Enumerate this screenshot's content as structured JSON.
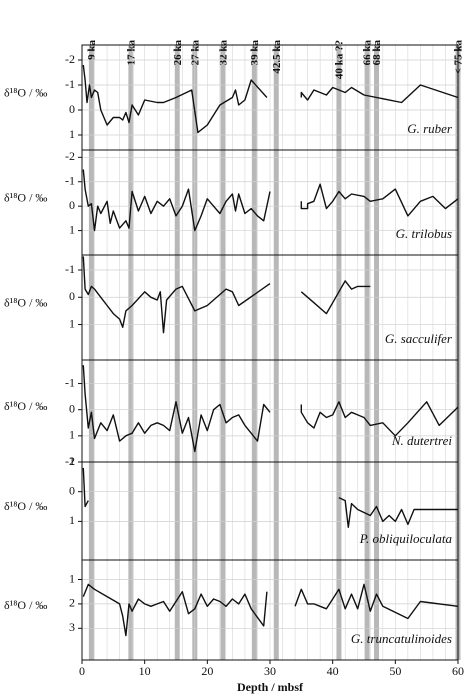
{
  "chart_data": [
    {
      "type": "line",
      "annotation": "G. ruber",
      "y_label": "δ¹⁸O / ‰",
      "inverted": true,
      "ylim": [
        -2.6,
        1.6
      ],
      "yticks": [
        -2,
        -1,
        0,
        1
      ],
      "xlim": [
        0,
        60
      ],
      "grid_step": 2,
      "color": "#111",
      "events": [
        {
          "label": "9 ka",
          "x": 1.5
        },
        {
          "label": "17 ka",
          "x": 7.8
        },
        {
          "label": "26 ka",
          "x": 15.2
        },
        {
          "label": "27 ka",
          "x": 18
        },
        {
          "label": "32 ka",
          "x": 22.5
        },
        {
          "label": "39 ka",
          "x": 27.5
        },
        {
          "label": "42.5 ka",
          "x": 31
        },
        {
          "label": "40 ka ??",
          "x": 41
        },
        {
          "label": "66 ka",
          "x": 45.5
        },
        {
          "label": "68 ka",
          "x": 47
        },
        {
          "label": "< 75 ka",
          "x": 60
        }
      ],
      "x": [
        0.2,
        0.5,
        0.8,
        1.2,
        1.5,
        2,
        2.5,
        3,
        4,
        5,
        6,
        6.5,
        7,
        7.5,
        8,
        9,
        10,
        12,
        13,
        15,
        17.5,
        18.5,
        20,
        22,
        24,
        24.5,
        25,
        26,
        27,
        29.5,
        null,
        35,
        35,
        36,
        37,
        39,
        40,
        42,
        43,
        45,
        51,
        54,
        60
      ],
      "values": [
        -1.8,
        -1.2,
        -0.3,
        -1,
        -0.5,
        -0.8,
        -0.7,
        0,
        0.6,
        0.3,
        0.3,
        0.4,
        0.1,
        0.5,
        -0.2,
        0.2,
        -0.4,
        -0.3,
        -0.3,
        -0.5,
        -0.8,
        0.9,
        0.6,
        -0.2,
        -0.5,
        -0.8,
        -0.2,
        -0.4,
        -1.2,
        -0.5,
        null,
        -0.5,
        -0.7,
        -0.4,
        -0.8,
        -0.6,
        -0.9,
        -0.7,
        -0.9,
        -0.6,
        -0.3,
        -1,
        -0.5
      ]
    },
    {
      "type": "line",
      "annotation": "G. trilobus",
      "y_label": "δ¹⁸O / ‰",
      "inverted": true,
      "ylim": [
        -2.3,
        2.0
      ],
      "yticks": [
        -2,
        -1,
        0,
        1
      ],
      "xlim": [
        0,
        60
      ],
      "grid_step": 2,
      "color": "#111",
      "x": [
        0.2,
        0.5,
        1,
        1.5,
        2,
        2.5,
        3,
        4,
        4.5,
        5,
        6,
        7,
        7.5,
        8,
        9,
        10,
        11,
        12,
        13,
        14,
        15,
        16,
        17,
        18,
        19,
        20,
        21,
        22,
        23,
        24,
        24.5,
        25,
        26,
        27,
        28,
        29,
        30,
        null,
        35,
        35,
        36,
        36,
        37,
        38,
        39,
        40,
        41,
        42,
        43,
        45,
        46,
        48,
        50,
        52,
        54,
        56,
        58,
        60
      ],
      "values": [
        -1.5,
        -0.7,
        0,
        -0.1,
        1,
        0,
        0.3,
        -0.2,
        0.7,
        0.2,
        0.9,
        0.6,
        0.9,
        -0.6,
        0.2,
        -0.4,
        0.3,
        -0.2,
        0,
        -0.3,
        0.4,
        0,
        -0.7,
        1,
        0.4,
        -0.3,
        0,
        0.3,
        -0.2,
        -0.5,
        0.2,
        -0.5,
        0.3,
        0.1,
        0.4,
        0.6,
        -0.6,
        null,
        -0.2,
        0.1,
        0.1,
        -0.1,
        -0.2,
        -0.9,
        0.1,
        -0.2,
        -0.6,
        -0.3,
        -0.5,
        -0.4,
        -0.2,
        -0.3,
        -0.7,
        0.4,
        -0.2,
        -0.4,
        0.1,
        -0.3
      ]
    },
    {
      "type": "line",
      "annotation": "G. sacculifer",
      "y_label": "δ¹⁸O / ‰",
      "inverted": true,
      "ylim": [
        -1.55,
        2.3
      ],
      "yticks": [
        -1,
        0,
        1
      ],
      "xlim": [
        0,
        60
      ],
      "grid_step": 2,
      "color": "#111",
      "x": [
        0.2,
        0.5,
        1,
        1.5,
        2,
        3,
        4,
        5,
        6,
        6.5,
        7,
        8,
        10,
        11,
        12,
        12.5,
        13,
        13.5,
        15,
        16,
        18,
        20,
        22,
        23,
        24,
        25,
        30,
        null,
        35,
        37,
        39,
        40,
        41,
        42,
        43,
        44,
        45,
        46
      ],
      "values": [
        -1.5,
        -0.3,
        -0.1,
        -0.4,
        -0.3,
        0,
        0.3,
        0.6,
        0.8,
        1.1,
        0.5,
        0.3,
        -0.2,
        0,
        0.1,
        -0.2,
        1.3,
        0.1,
        -0.3,
        -0.4,
        0.5,
        0.3,
        -0.1,
        -0.3,
        -0.2,
        0.3,
        -0.5,
        null,
        -0.2,
        0.2,
        0.6,
        0.2,
        -0.2,
        -0.6,
        -0.3,
        -0.4,
        -0.4,
        -0.4
      ]
    },
    {
      "type": "line",
      "annotation": "N. dutertrei",
      "y_label": "δ¹⁸O / ‰",
      "inverted": true,
      "ylim": [
        -1.9,
        2.0
      ],
      "yticks": [
        -1,
        0,
        1,
        2
      ],
      "xlim": [
        0,
        60
      ],
      "grid_step": 2,
      "color": "#111",
      "x": [
        0.2,
        0.5,
        1,
        1.5,
        2,
        3,
        4,
        5,
        6,
        7,
        8,
        9,
        10,
        11,
        12,
        13,
        14,
        15,
        16,
        17,
        18,
        19,
        20,
        21,
        22,
        23,
        24,
        25,
        26,
        27,
        28,
        29,
        30,
        null,
        35,
        35,
        36,
        37,
        38,
        39,
        40,
        41,
        42,
        43,
        44,
        45,
        46,
        48,
        50,
        52,
        55,
        57,
        60
      ],
      "values": [
        -1.7,
        -0.6,
        0.7,
        0.1,
        1.1,
        0.5,
        0.8,
        0.2,
        1.2,
        1,
        0.9,
        0.5,
        0.9,
        0.6,
        0.5,
        0.6,
        0.8,
        -0.3,
        0.9,
        0.3,
        1.6,
        0.2,
        0.8,
        0,
        -0.2,
        0.5,
        0.3,
        0.2,
        0.6,
        0.9,
        1.2,
        -0.2,
        0.1,
        null,
        -0.2,
        0.1,
        0.5,
        0.7,
        0.1,
        0.3,
        0.2,
        -0.3,
        0.3,
        0.1,
        0.2,
        0.3,
        0.6,
        0.5,
        1,
        0.5,
        -0.3,
        0.6,
        -0.1
      ]
    },
    {
      "type": "line",
      "annotation": "P. obliquiloculata",
      "y_label": "δ¹⁸O / ‰",
      "inverted": true,
      "ylim": [
        -1.0,
        2.3
      ],
      "yticks": [
        -1,
        0,
        1
      ],
      "xlim": [
        0,
        60
      ],
      "grid_step": 2,
      "color": "#111",
      "x": [
        0.2,
        0.5,
        1,
        null,
        41,
        42,
        42.5,
        43,
        44,
        45,
        46,
        47,
        48,
        49,
        50,
        51,
        52,
        53,
        60
      ],
      "values": [
        -0.8,
        0.5,
        0.3,
        null,
        0.2,
        0.3,
        1.2,
        0.4,
        0.6,
        0.7,
        0.8,
        0.5,
        1,
        0.8,
        1,
        0.6,
        1.1,
        0.6,
        0.6
      ]
    },
    {
      "type": "line",
      "annotation": "G. truncatulinoides",
      "y_label": "δ¹⁸O / ‰",
      "inverted": true,
      "ylim": [
        0.2,
        4.3
      ],
      "yticks": [
        1,
        2,
        3
      ],
      "xlim": [
        0,
        60
      ],
      "xticks": [
        0,
        10,
        20,
        30,
        40,
        50,
        60
      ],
      "x_label": "Depth / mbsf",
      "grid_step": 2,
      "color": "#111",
      "x": [
        0.2,
        1,
        2,
        4,
        6,
        6.5,
        7,
        7.5,
        8,
        9,
        10,
        11,
        12,
        13,
        14,
        15,
        16,
        17,
        18,
        19,
        20,
        21,
        22,
        23,
        24,
        25,
        26,
        27,
        29,
        29.5,
        null,
        34,
        35,
        36,
        37,
        38,
        39,
        40,
        41,
        42,
        43,
        44,
        45,
        46,
        47,
        48,
        52,
        54,
        60
      ],
      "values": [
        1.7,
        1.2,
        1.4,
        1.7,
        2,
        2.5,
        3.3,
        2,
        2.3,
        1.8,
        2,
        2.1,
        2,
        1.9,
        2.3,
        1.9,
        1.5,
        2.4,
        2.2,
        1.6,
        2.1,
        1.8,
        1.9,
        2.1,
        1.8,
        2,
        1.6,
        2.2,
        2.9,
        1.5,
        null,
        2.1,
        1.4,
        2,
        2,
        2.1,
        2.2,
        1.8,
        1.4,
        2.2,
        1.6,
        2.2,
        1.2,
        2.3,
        1.6,
        2.1,
        2.6,
        1.9,
        2.1
      ]
    }
  ]
}
